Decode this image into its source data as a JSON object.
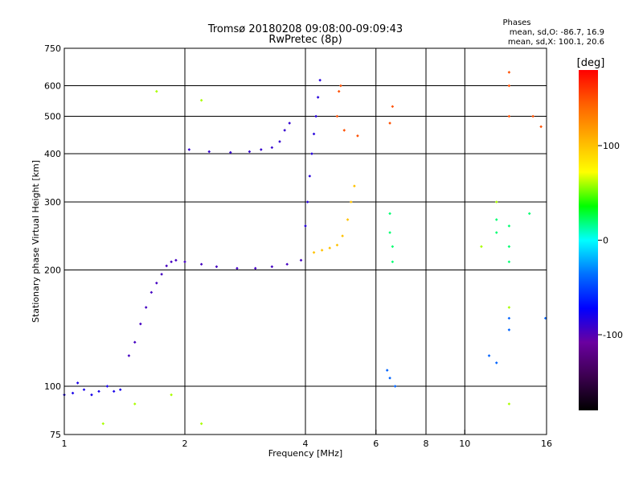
{
  "chart_data": {
    "type": "scatter",
    "title": "Tromsø 20180208 09:08:00-09:09:43",
    "subtitle": "RwPretec (8p)",
    "xlabel": "Frequency [MHz]",
    "ylabel": "Stationary phase Virtual Height [km]",
    "x_scale": "log",
    "y_scale": "log",
    "xlim": [
      1,
      16
    ],
    "ylim": [
      75,
      750
    ],
    "x_ticks": [
      {
        "value": 1,
        "label": "1"
      },
      {
        "value": 2,
        "label": "2"
      },
      {
        "value": 4,
        "label": "4"
      },
      {
        "value": 6,
        "label": "6"
      },
      {
        "value": 8,
        "label": "8"
      },
      {
        "value": 10,
        "label": "10"
      },
      {
        "value": 16,
        "label": "16"
      }
    ],
    "x_gridlines": [
      2,
      4,
      6,
      8,
      10
    ],
    "y_ticks": [
      {
        "value": 75,
        "label": "75"
      },
      {
        "value": 100,
        "label": "100"
      },
      {
        "value": 200,
        "label": "200"
      },
      {
        "value": 300,
        "label": "300"
      },
      {
        "value": 400,
        "label": "400"
      },
      {
        "value": 500,
        "label": "500"
      },
      {
        "value": 600,
        "label": "600"
      },
      {
        "value": 750,
        "label": "750"
      }
    ],
    "y_gridlines": [
      100,
      200,
      300,
      400,
      500,
      600
    ],
    "legend": {
      "title": "Phases",
      "line1": "mean, sd,O: -86.7, 16.9",
      "line2": "mean, sd,X: 100.1, 20.6"
    },
    "colorbar": {
      "label": "[deg]",
      "range": [
        -180,
        180
      ],
      "ticks": [
        {
          "value": 100,
          "label": "100"
        },
        {
          "value": 0,
          "label": "0"
        },
        {
          "value": -100,
          "label": "-100"
        }
      ],
      "colors": [
        "#000000",
        "#3c0050",
        "#6a00a0",
        "#0000ff",
        "#0070ff",
        "#00ffff",
        "#00ff00",
        "#ffff00",
        "#ffb000",
        "#ff6000",
        "#ff0000"
      ]
    },
    "traces": [
      {
        "name": "",
        "phase_deg": -80,
        "points": [
          [
            1.0,
            95
          ],
          [
            1.05,
            96
          ],
          [
            1.08,
            102
          ],
          [
            1.12,
            98
          ],
          [
            1.17,
            95
          ],
          [
            1.22,
            97
          ],
          [
            1.28,
            100
          ],
          [
            1.33,
            97
          ],
          [
            1.38,
            98
          ]
        ]
      },
      {
        "name": "",
        "phase_deg": -95,
        "points": [
          [
            1.45,
            120
          ],
          [
            1.5,
            130
          ],
          [
            1.55,
            145
          ],
          [
            1.6,
            160
          ],
          [
            1.65,
            175
          ],
          [
            1.7,
            185
          ],
          [
            1.75,
            195
          ],
          [
            1.8,
            205
          ],
          [
            1.85,
            210
          ],
          [
            1.9,
            212
          ],
          [
            2.0,
            210
          ],
          [
            2.2,
            207
          ],
          [
            2.4,
            204
          ],
          [
            2.7,
            202
          ],
          [
            3.0,
            202
          ],
          [
            3.3,
            204
          ],
          [
            3.6,
            207
          ],
          [
            3.9,
            212
          ]
        ]
      },
      {
        "name": "",
        "phase_deg": -90,
        "points": [
          [
            2.05,
            410
          ],
          [
            2.3,
            405
          ],
          [
            2.6,
            403
          ],
          [
            2.9,
            405
          ],
          [
            3.1,
            410
          ],
          [
            3.3,
            415
          ],
          [
            3.45,
            430
          ],
          [
            3.55,
            460
          ],
          [
            3.65,
            480
          ]
        ]
      },
      {
        "name": "",
        "phase_deg": -85,
        "points": [
          [
            4.0,
            260
          ],
          [
            4.05,
            300
          ],
          [
            4.1,
            350
          ],
          [
            4.15,
            400
          ],
          [
            4.2,
            450
          ],
          [
            4.25,
            500
          ],
          [
            4.3,
            560
          ],
          [
            4.35,
            620
          ]
        ]
      },
      {
        "name": "",
        "phase_deg": 100,
        "points": [
          [
            4.2,
            222
          ],
          [
            4.4,
            225
          ],
          [
            4.6,
            228
          ],
          [
            4.8,
            232
          ],
          [
            4.95,
            245
          ],
          [
            5.1,
            270
          ],
          [
            5.2,
            300
          ],
          [
            5.3,
            330
          ]
        ]
      },
      {
        "name": "",
        "phase_deg": 150,
        "points": [
          [
            4.9,
            600
          ],
          [
            4.85,
            580
          ],
          [
            4.8,
            500
          ],
          [
            5.0,
            460
          ],
          [
            5.4,
            445
          ],
          [
            6.5,
            480
          ],
          [
            6.6,
            530
          ],
          [
            12.9,
            650
          ],
          [
            12.9,
            600
          ],
          [
            12.9,
            500
          ],
          [
            14.8,
            500
          ],
          [
            15.5,
            470
          ]
        ]
      },
      {
        "name": "",
        "phase_deg": 20,
        "points": [
          [
            6.5,
            280
          ],
          [
            6.5,
            250
          ],
          [
            6.6,
            230
          ],
          [
            6.6,
            210
          ],
          [
            12.0,
            270
          ],
          [
            12.0,
            250
          ],
          [
            12.9,
            260
          ],
          [
            12.9,
            230
          ],
          [
            12.9,
            210
          ],
          [
            14.5,
            280
          ]
        ]
      },
      {
        "name": "",
        "phase_deg": -40,
        "points": [
          [
            6.4,
            110
          ],
          [
            6.5,
            105
          ],
          [
            6.7,
            100
          ],
          [
            11.5,
            120
          ],
          [
            12.0,
            115
          ],
          [
            12.9,
            150
          ],
          [
            12.9,
            140
          ],
          [
            15.9,
            150
          ]
        ]
      },
      {
        "name": "",
        "phase_deg": 60,
        "points": [
          [
            1.7,
            580
          ],
          [
            2.2,
            550
          ],
          [
            2.2,
            80
          ],
          [
            1.25,
            80
          ],
          [
            1.85,
            95
          ],
          [
            1.5,
            90
          ],
          [
            11.0,
            230
          ],
          [
            12.0,
            300
          ],
          [
            12.9,
            160
          ],
          [
            12.9,
            90
          ]
        ]
      }
    ]
  }
}
